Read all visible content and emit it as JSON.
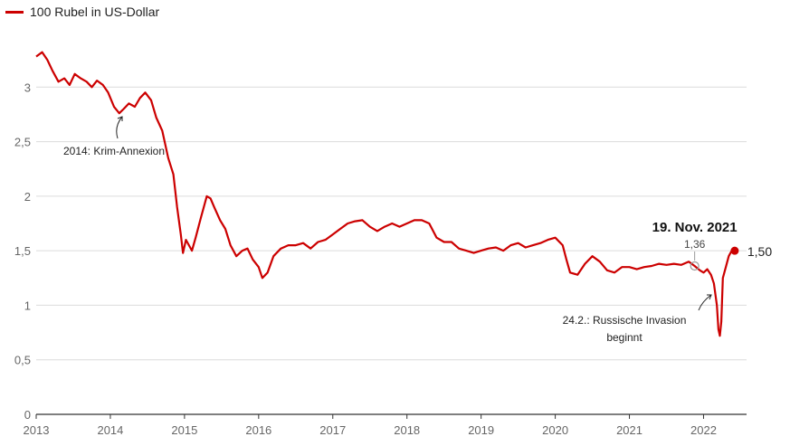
{
  "legend": {
    "label": "100 Rubel in US-Dollar",
    "color": "#cc0000"
  },
  "chart_data": {
    "type": "line",
    "title": "",
    "xlabel": "",
    "ylabel": "",
    "legend_position": "top-left",
    "grid": "horizontal",
    "xlim": [
      2013.0,
      2022.58
    ],
    "ylim": [
      0,
      3.5
    ],
    "x_ticks": [
      2013,
      2014,
      2015,
      2016,
      2017,
      2018,
      2019,
      2020,
      2021,
      2022
    ],
    "x_tick_labels": [
      "2013",
      "2014",
      "2015",
      "2016",
      "2017",
      "2018",
      "2019",
      "2020",
      "2021",
      "2022"
    ],
    "y_ticks": [
      0,
      0.5,
      1,
      1.5,
      2,
      2.5,
      3
    ],
    "y_tick_labels": [
      "0",
      "0,5",
      "1",
      "1,5",
      "2",
      "2,5",
      "3"
    ],
    "series": [
      {
        "name": "100 Rubel in US-Dollar",
        "color": "#cc0000",
        "x": [
          2013.0,
          2013.08,
          2013.15,
          2013.22,
          2013.3,
          2013.38,
          2013.45,
          2013.52,
          2013.6,
          2013.68,
          2013.75,
          2013.82,
          2013.9,
          2013.97,
          2014.05,
          2014.12,
          2014.18,
          2014.25,
          2014.33,
          2014.4,
          2014.47,
          2014.55,
          2014.62,
          2014.7,
          2014.78,
          2014.85,
          2014.9,
          2014.95,
          2014.98,
          2015.02,
          2015.06,
          2015.1,
          2015.15,
          2015.22,
          2015.3,
          2015.35,
          2015.4,
          2015.48,
          2015.55,
          2015.62,
          2015.7,
          2015.78,
          2015.85,
          2015.92,
          2016.0,
          2016.05,
          2016.12,
          2016.2,
          2016.3,
          2016.4,
          2016.5,
          2016.6,
          2016.7,
          2016.8,
          2016.9,
          2017.0,
          2017.1,
          2017.2,
          2017.3,
          2017.4,
          2017.5,
          2017.6,
          2017.7,
          2017.8,
          2017.9,
          2018.0,
          2018.1,
          2018.2,
          2018.3,
          2018.4,
          2018.5,
          2018.6,
          2018.7,
          2018.8,
          2018.9,
          2019.0,
          2019.1,
          2019.2,
          2019.3,
          2019.4,
          2019.5,
          2019.6,
          2019.7,
          2019.8,
          2019.9,
          2020.0,
          2020.1,
          2020.15,
          2020.2,
          2020.3,
          2020.4,
          2020.5,
          2020.6,
          2020.7,
          2020.8,
          2020.9,
          2021.0,
          2021.1,
          2021.2,
          2021.3,
          2021.4,
          2021.5,
          2021.6,
          2021.7,
          2021.8,
          2021.88,
          2021.95,
          2022.0,
          2022.05,
          2022.1,
          2022.14,
          2022.18,
          2022.2,
          2022.22,
          2022.24,
          2022.26,
          2022.3,
          2022.34,
          2022.38,
          2022.42
        ],
        "y": [
          3.28,
          3.32,
          3.25,
          3.15,
          3.05,
          3.08,
          3.02,
          3.12,
          3.08,
          3.05,
          3.0,
          3.06,
          3.02,
          2.95,
          2.82,
          2.76,
          2.8,
          2.85,
          2.82,
          2.9,
          2.95,
          2.88,
          2.72,
          2.6,
          2.35,
          2.2,
          1.9,
          1.65,
          1.48,
          1.6,
          1.55,
          1.5,
          1.62,
          1.8,
          2.0,
          1.98,
          1.9,
          1.78,
          1.7,
          1.55,
          1.45,
          1.5,
          1.52,
          1.42,
          1.35,
          1.25,
          1.3,
          1.45,
          1.52,
          1.55,
          1.55,
          1.57,
          1.52,
          1.58,
          1.6,
          1.65,
          1.7,
          1.75,
          1.77,
          1.78,
          1.72,
          1.68,
          1.72,
          1.75,
          1.72,
          1.75,
          1.78,
          1.78,
          1.75,
          1.62,
          1.58,
          1.58,
          1.52,
          1.5,
          1.48,
          1.5,
          1.52,
          1.53,
          1.5,
          1.55,
          1.57,
          1.53,
          1.55,
          1.57,
          1.6,
          1.62,
          1.55,
          1.42,
          1.3,
          1.28,
          1.38,
          1.45,
          1.4,
          1.32,
          1.3,
          1.35,
          1.35,
          1.33,
          1.35,
          1.36,
          1.38,
          1.37,
          1.38,
          1.37,
          1.4,
          1.36,
          1.32,
          1.3,
          1.33,
          1.28,
          1.2,
          1.0,
          0.78,
          0.72,
          0.85,
          1.25,
          1.35,
          1.45,
          1.5,
          1.5
        ]
      }
    ],
    "highlight": {
      "x": 2021.88,
      "y": 1.36,
      "date_label": "19. Nov. 2021",
      "value_label": "1,36"
    },
    "end_point": {
      "x": 2022.42,
      "y": 1.5,
      "label": "1,50"
    },
    "annotations": [
      {
        "text": "2014: Krim-Annexion"
      },
      {
        "text": "24.2.: Russische Invasion",
        "text2": "beginnt"
      }
    ]
  }
}
